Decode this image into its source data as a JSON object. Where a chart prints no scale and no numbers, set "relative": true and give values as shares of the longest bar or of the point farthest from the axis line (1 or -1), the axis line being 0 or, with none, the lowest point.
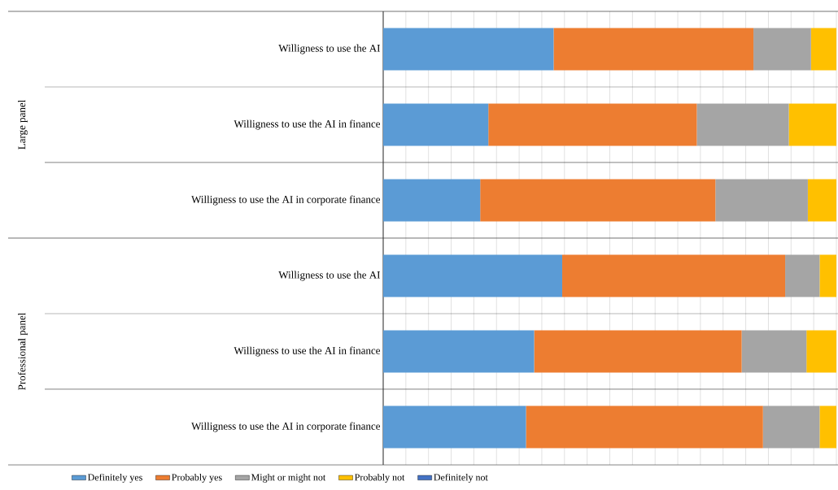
{
  "chart_data": {
    "type": "bar",
    "orientation": "horizontal",
    "stacked": true,
    "relative": true,
    "grid": "x",
    "legend": "bottom",
    "categories": [
      "Willigness to use the AI",
      "Willigness to use the AI in finance",
      "Willigness to use the AI in corporate finance",
      "Willigness to use the AI",
      "Willigness to use the AI in finance",
      "Willigness to use the AI in corporate finance"
    ],
    "annotations": [
      "Large panel",
      "Professional panel"
    ],
    "series": [
      {
        "name": "Definitely yes",
        "color": "#5b9bd5",
        "values": [
          0.376,
          0.232,
          0.214,
          0.395,
          0.333,
          0.315
        ]
      },
      {
        "name": "Probably yes",
        "color": "#ed7d31",
        "values": [
          0.441,
          0.46,
          0.519,
          0.492,
          0.458,
          0.523
        ]
      },
      {
        "name": "Might or might not",
        "color": "#a5a5a5",
        "values": [
          0.127,
          0.203,
          0.204,
          0.076,
          0.143,
          0.125
        ]
      },
      {
        "name": "Probably not",
        "color": "#ffc000",
        "values": [
          0.056,
          0.105,
          0.063,
          0.037,
          0.066,
          0.037
        ]
      },
      {
        "name": "Definitely not",
        "color": "#4472c4",
        "values": [
          null,
          null,
          null,
          null,
          null,
          null
        ]
      }
    ]
  }
}
